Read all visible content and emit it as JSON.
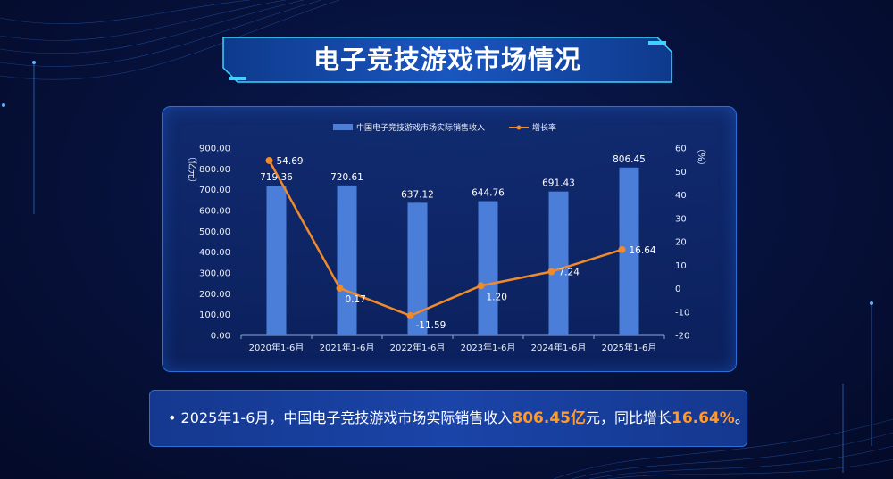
{
  "title": "电子竞技游戏市场情况",
  "note": {
    "bullet": "•",
    "pre": "2025年1-6月，中国电子竞技游戏市场实际销售收入",
    "value": "806.45亿",
    "mid": "元，同比增长",
    "rate": "16.64%",
    "post": "。"
  },
  "colors": {
    "bar": "#4a7ed8",
    "line": "#f08a2a",
    "highlight": "#ff9a2e"
  },
  "chart_data": {
    "type": "bar",
    "categories": [
      "2020年1-6月",
      "2021年1-6月",
      "2022年1-6月",
      "2023年1-6月",
      "2024年1-6月",
      "2025年1-6月"
    ],
    "series": [
      {
        "name": "中国电子竞技游戏市场实际销售收入",
        "type": "bar",
        "axis": "left",
        "values": [
          719.36,
          720.61,
          637.12,
          644.76,
          691.43,
          806.45
        ]
      },
      {
        "name": "增长率",
        "type": "line",
        "axis": "right",
        "values": [
          54.69,
          0.17,
          -11.59,
          1.2,
          7.24,
          16.64
        ]
      }
    ],
    "value_labels": {
      "bar": [
        "719.36",
        "720.61",
        "637.12",
        "644.76",
        "691.43",
        "806.45"
      ],
      "line": [
        "54.69",
        "0.17",
        "-11.59",
        "1.20",
        "7.24",
        "16.64"
      ]
    },
    "ylabel": "（亿元）",
    "y2label": "（%）",
    "ylim": [
      0,
      900
    ],
    "y2lim": [
      -20,
      60
    ],
    "yticks": [
      "0.00",
      "100.00",
      "200.00",
      "300.00",
      "400.00",
      "500.00",
      "600.00",
      "700.00",
      "800.00",
      "900.00"
    ],
    "y2ticks": [
      "-20",
      "-10",
      "0",
      "10",
      "20",
      "30",
      "40",
      "50",
      "60"
    ],
    "legend": "top",
    "grid": false
  }
}
